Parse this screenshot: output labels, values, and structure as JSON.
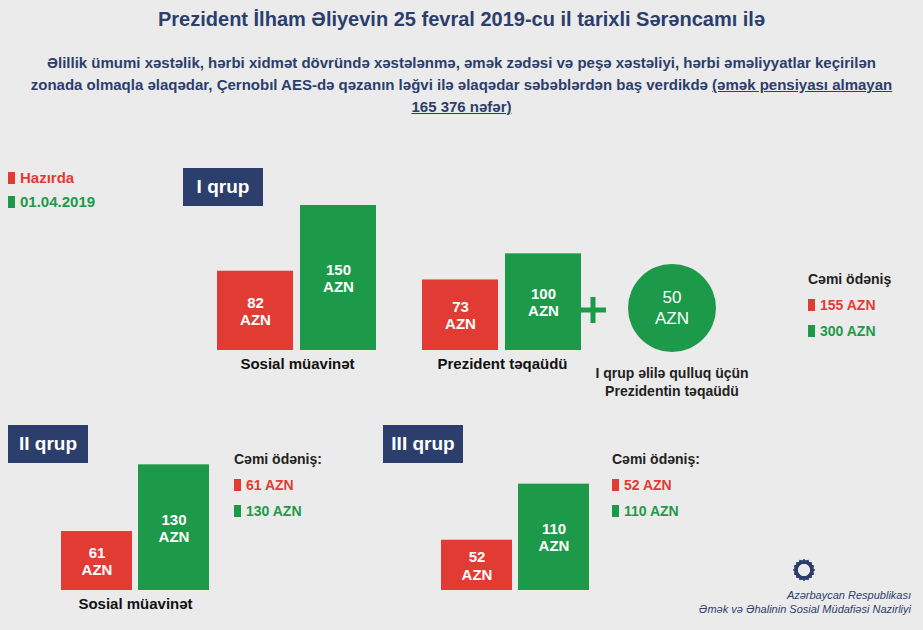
{
  "title": "Prezident İlham Əliyevin 25 fevral 2019-cu il tarixli Sərəncamı ilə",
  "subtitle": "Əlillik ümumi xəstəlik, hərbi xidmət dövründə xəstələnmə, əmək zədəsi və peşə xəstəliyi, hərbi əməliyyatlar keçirilən zonada olmaqla əlaqədar, Çernobıl AES-də qəzanın ləğvi ilə əlaqədar səbəblərdən baş verdikdə",
  "subtitle_note": "(əmək pensiyası almayan 165 376 nəfər)",
  "footer": [
    "Azərbaycan Respublikası",
    "Əmək və Əhalinin Sosial Müdafiəsi Nazirliyi"
  ],
  "chart_data": [
    {
      "type": "bar",
      "title": "I qrup",
      "categories": [
        "Sosial müavinət",
        "Prezident təqaüdü"
      ],
      "series": [
        {
          "name": "Hazırda",
          "color": "#e23b33",
          "values": [
            82,
            73
          ],
          "value_labels": [
            "82\nAZN",
            "73\nAZN"
          ]
        },
        {
          "name": "01.04.2019",
          "color": "#1d9a49",
          "values": [
            150,
            100
          ],
          "value_labels": [
            "150\nAZN",
            "100\nAZN"
          ]
        }
      ],
      "ylim": [
        0,
        150
      ],
      "data_labels": true,
      "tick_labels": "x",
      "legend": "top-left",
      "addition": {
        "value": 50,
        "label": "50\nAZN",
        "caption": "I qrup əlilə qulluq üçün Prezidentin təqaüdü"
      },
      "totals": {
        "label": "Cəmi ödəniş",
        "values": [
          155,
          300
        ],
        "value_labels": [
          "155 AZN",
          "300 AZN"
        ]
      }
    },
    {
      "type": "bar",
      "title": "II qrup",
      "categories": [
        "Sosial müavinət"
      ],
      "series": [
        {
          "name": "Hazırda",
          "color": "#e23b33",
          "values": [
            61
          ],
          "value_labels": [
            "61\nAZN"
          ]
        },
        {
          "name": "01.04.2019",
          "color": "#1d9a49",
          "values": [
            130
          ],
          "value_labels": [
            "130\nAZN"
          ]
        }
      ],
      "ylim": [
        0,
        150
      ],
      "data_labels": true,
      "tick_labels": "x",
      "totals": {
        "label": "Cəmi ödəniş:",
        "values": [
          61,
          130
        ],
        "value_labels": [
          "61 AZN",
          "130 AZN"
        ]
      }
    },
    {
      "type": "bar",
      "title": "III qrup",
      "categories": [
        null
      ],
      "series": [
        {
          "name": "Hazırda",
          "color": "#e23b33",
          "values": [
            52
          ],
          "value_labels": [
            "52\nAZN"
          ]
        },
        {
          "name": "01.04.2019",
          "color": "#1d9a49",
          "values": [
            110
          ],
          "value_labels": [
            "110\nAZN"
          ]
        }
      ],
      "ylim": [
        0,
        150
      ],
      "data_labels": true,
      "tick_labels": false,
      "totals": {
        "label": "Cəmi ödəniş:",
        "values": [
          52,
          110
        ],
        "value_labels": [
          "52 AZN",
          "110 AZN"
        ]
      }
    }
  ]
}
